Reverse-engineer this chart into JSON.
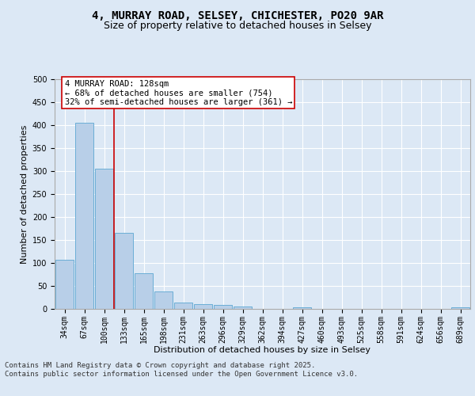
{
  "title_line1": "4, MURRAY ROAD, SELSEY, CHICHESTER, PO20 9AR",
  "title_line2": "Size of property relative to detached houses in Selsey",
  "xlabel": "Distribution of detached houses by size in Selsey",
  "ylabel": "Number of detached properties",
  "categories": [
    "34sqm",
    "67sqm",
    "100sqm",
    "133sqm",
    "165sqm",
    "198sqm",
    "231sqm",
    "263sqm",
    "296sqm",
    "329sqm",
    "362sqm",
    "394sqm",
    "427sqm",
    "460sqm",
    "493sqm",
    "525sqm",
    "558sqm",
    "591sqm",
    "624sqm",
    "656sqm",
    "689sqm"
  ],
  "values": [
    107,
    405,
    305,
    165,
    77,
    38,
    13,
    10,
    8,
    5,
    0,
    0,
    3,
    0,
    0,
    0,
    0,
    0,
    0,
    0,
    3
  ],
  "bar_color": "#b8cfe8",
  "bar_edge_color": "#6baed6",
  "vline_color": "#cc0000",
  "vline_x": 2.5,
  "annotation_text": "4 MURRAY ROAD: 128sqm\n← 68% of detached houses are smaller (754)\n32% of semi-detached houses are larger (361) →",
  "annotation_box_color": "#ffffff",
  "annotation_box_edge_color": "#cc0000",
  "footer_text": "Contains HM Land Registry data © Crown copyright and database right 2025.\nContains public sector information licensed under the Open Government Licence v3.0.",
  "ylim_max": 500,
  "bg_color": "#dce8f5",
  "grid_color": "#ffffff",
  "title_fontsize": 10,
  "subtitle_fontsize": 9,
  "axis_label_fontsize": 8,
  "tick_fontsize": 7,
  "annotation_fontsize": 7.5
}
